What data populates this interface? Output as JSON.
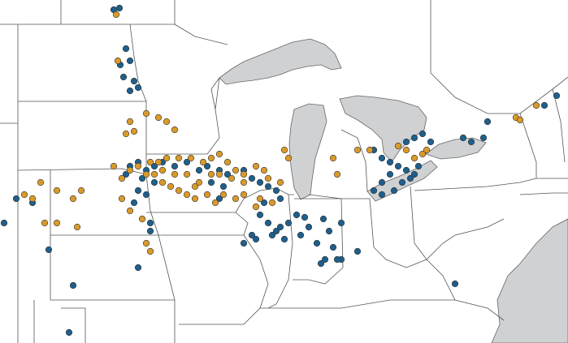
{
  "map": {
    "marker_colors": [
      "#1f5f8b",
      "#d99a2b"
    ]
  }
}
